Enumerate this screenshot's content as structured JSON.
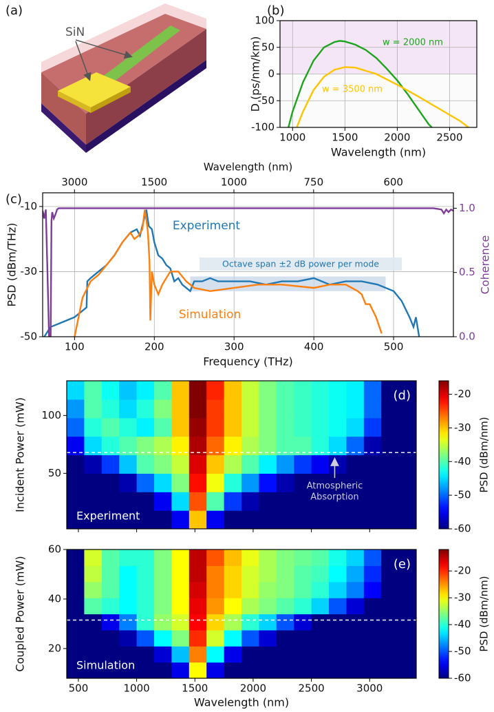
{
  "illustration": {
    "label": "(a)",
    "annotation": "SiN"
  },
  "chart_data": [
    {
      "type": "line",
      "panel_label": "(b)",
      "xlabel": "Wavelength (nm)",
      "ylabel": "D (ps/nm/km)",
      "xlim": [
        880,
        2760
      ],
      "xticks": [
        1000,
        1500,
        2000,
        2500
      ],
      "ylim": [
        -100,
        100
      ],
      "yticks": [
        -100,
        -50,
        0,
        50,
        100
      ],
      "grid": true,
      "band": [
        0,
        100
      ],
      "band_color": "#f4e6f6",
      "series": [
        {
          "name": "w = 2000 nm",
          "color": "#1ca51c",
          "x": [
            960,
            1000,
            1100,
            1200,
            1300,
            1400,
            1450,
            1500,
            1600,
            1700,
            1800,
            1900,
            2000,
            2100,
            2200,
            2300,
            2330
          ],
          "values": [
            -100,
            -70,
            -15,
            25,
            50,
            60,
            62,
            61,
            55,
            45,
            30,
            10,
            -12,
            -38,
            -66,
            -94,
            -100
          ]
        },
        {
          "name": "w = 3500 nm",
          "color": "#ffc400",
          "x": [
            1040,
            1100,
            1200,
            1300,
            1400,
            1500,
            1600,
            1800,
            2000,
            2200,
            2400,
            2600,
            2680
          ],
          "values": [
            -100,
            -70,
            -30,
            -5,
            8,
            13,
            12,
            0,
            -20,
            -42,
            -65,
            -88,
            -100
          ]
        }
      ]
    },
    {
      "type": "line",
      "panel_label": "(c)",
      "xlabel": "Frequency (THz)",
      "ylabel": "PSD (dBm/THz)",
      "y2label": "Coherence",
      "x2label": "Wavelength (nm)",
      "xlim": [
        60,
        575
      ],
      "xticks": [
        100,
        200,
        300,
        400,
        500
      ],
      "x2ticks": [
        3000,
        1500,
        1000,
        750,
        600
      ],
      "ylim": [
        -50,
        -5.8
      ],
      "yticks": [
        -50,
        -30,
        -10
      ],
      "y2lim": [
        0,
        1.12
      ],
      "y2ticks": [
        {
          "value": 0,
          "label": "0.0"
        },
        0.5,
        {
          "value": 1,
          "label": "1.0"
        }
      ],
      "grid": true,
      "annotation": "Octave span ±2 dB power per mode",
      "annotation_box": {
        "x": [
          245,
          490
        ],
        "y": [
          -36,
          -31.5
        ]
      },
      "series": [
        {
          "name": "Experiment",
          "color": "#1f77b4",
          "x": [
            62,
            70,
            80,
            90,
            100,
            110,
            115,
            116,
            120,
            130,
            140,
            150,
            160,
            170,
            178,
            182,
            185,
            188,
            190,
            193,
            197,
            200,
            205,
            210,
            215,
            220,
            225,
            230,
            235,
            240,
            245,
            250,
            260,
            270,
            280,
            300,
            320,
            340,
            360,
            380,
            400,
            420,
            440,
            460,
            480,
            500,
            510,
            520,
            525,
            528,
            532
          ],
          "values": [
            -50,
            -47,
            -46,
            -45,
            -44,
            -42,
            -41,
            -33,
            -32,
            -30,
            -28,
            -25,
            -21,
            -18,
            -17,
            -19,
            -16,
            -13,
            -11,
            -16,
            -17,
            -21,
            -25,
            -26,
            -28,
            -29,
            -33,
            -32,
            -34,
            -35,
            -36,
            -33,
            -33,
            -32,
            -33,
            -33,
            -33,
            -34,
            -33,
            -33,
            -32,
            -34,
            -33,
            -33,
            -34,
            -36,
            -39,
            -44,
            -47,
            -44,
            -50
          ]
        },
        {
          "name": "Simulation",
          "color": "#ff7f0e",
          "x": [
            100,
            105,
            110,
            120,
            130,
            140,
            150,
            160,
            170,
            175,
            180,
            185,
            188,
            190,
            192,
            194,
            195,
            197,
            200,
            205,
            210,
            220,
            230,
            240,
            250,
            270,
            300,
            330,
            360,
            400,
            420,
            440,
            455,
            460,
            465,
            470,
            478,
            485
          ],
          "values": [
            -50,
            -44,
            -38,
            -33,
            -31,
            -28,
            -25,
            -21,
            -18,
            -20,
            -19,
            -17,
            -11,
            -14,
            -18,
            -27,
            -45,
            -30,
            -34,
            -37,
            -34,
            -30,
            -30,
            -33,
            -35,
            -36,
            -35,
            -34,
            -34,
            -35,
            -34,
            -34,
            -36,
            -37,
            -40,
            -40,
            -44,
            -49
          ]
        },
        {
          "axis": "y2",
          "color": "#7d3c98",
          "x": [
            60,
            62,
            64,
            66,
            68,
            69,
            70,
            71,
            72,
            74,
            76,
            78,
            80,
            85,
            100,
            200,
            300,
            400,
            500,
            550,
            560,
            563,
            566,
            569,
            572,
            575
          ],
          "values": [
            0.98,
            0.92,
            0.99,
            0.5,
            0,
            0,
            0,
            0.9,
            0.97,
            0.92,
            0.95,
            0.99,
            1,
            1,
            1,
            1,
            1,
            1,
            1,
            1,
            0.99,
            0.96,
            0.99,
            0.97,
            0.99,
            0.98
          ]
        }
      ]
    },
    {
      "type": "heatmap",
      "panel_label": "(d)",
      "ylabel": "Incident Power (mW)",
      "label": "Experiment",
      "annotation_lines": [
        "Atmospheric",
        "Absorption"
      ],
      "arrow": {
        "x": 2700,
        "y": [
          46,
          62
        ]
      },
      "xlim": [
        400,
        3400
      ],
      "xticks": [
        500,
        1000,
        1500,
        2000,
        2500,
        3000
      ],
      "ylim": [
        2,
        130
      ],
      "yticks": [
        50,
        100
      ],
      "dashed_y": 68,
      "colormap": "jet",
      "clim": [
        -60,
        -16
      ],
      "cticks": [
        -60,
        -50,
        -40,
        -30,
        -20
      ],
      "clabel": "PSD (dBm/nm)",
      "x_bins": [
        400,
        550,
        700,
        850,
        1000,
        1150,
        1300,
        1450,
        1600,
        1750,
        1900,
        2050,
        2200,
        2350,
        2500,
        2650,
        2800,
        2950,
        3100,
        3250,
        3400
      ],
      "y_bins": [
        2,
        18,
        34,
        50,
        66,
        82,
        98,
        114,
        130
      ],
      "z": [
        [
          -60,
          -60,
          -60,
          -60,
          -60,
          -60,
          -55,
          -30,
          -55,
          -60,
          -60,
          -60,
          -60,
          -60,
          -60,
          -60,
          -60,
          -60,
          -60,
          -60
        ],
        [
          -60,
          -60,
          -60,
          -60,
          -60,
          -55,
          -45,
          -25,
          -40,
          -52,
          -58,
          -60,
          -60,
          -60,
          -60,
          -60,
          -60,
          -60,
          -60,
          -60
        ],
        [
          -60,
          -60,
          -60,
          -58,
          -50,
          -45,
          -38,
          -22,
          -33,
          -42,
          -48,
          -54,
          -58,
          -60,
          -60,
          -60,
          -60,
          -60,
          -60,
          -60
        ],
        [
          -60,
          -58,
          -52,
          -46,
          -40,
          -38,
          -35,
          -20,
          -30,
          -36,
          -40,
          -44,
          -48,
          -52,
          -55,
          -58,
          -60,
          -60,
          -60,
          -60
        ],
        [
          -55,
          -45,
          -42,
          -40,
          -38,
          -36,
          -32,
          -18,
          -26,
          -32,
          -36,
          -38,
          -40,
          -40,
          -42,
          -45,
          -50,
          -58,
          -60,
          -60
        ],
        [
          -50,
          -42,
          -40,
          -42,
          -44,
          -40,
          -30,
          -17,
          -24,
          -30,
          -35,
          -38,
          -40,
          -41,
          -42,
          -43,
          -45,
          -52,
          -60,
          -60
        ],
        [
          -48,
          -40,
          -42,
          -45,
          -42,
          -38,
          -30,
          -16,
          -24,
          -30,
          -35,
          -38,
          -40,
          -41,
          -42,
          -43,
          -44,
          -50,
          -60,
          -60
        ],
        [
          -45,
          -40,
          -43,
          -46,
          -44,
          -40,
          -30,
          -16,
          -23,
          -30,
          -35,
          -38,
          -40,
          -41,
          -42,
          -43,
          -44,
          -50,
          -60,
          -60
        ]
      ]
    },
    {
      "type": "heatmap",
      "panel_label": "(e)",
      "ylabel": "Coupled Power (mW)",
      "xlabel": "Wavelength (nm)",
      "label": "Simulation",
      "xlim": [
        400,
        3400
      ],
      "xticks": [
        500,
        1000,
        1500,
        2000,
        2500,
        3000
      ],
      "ylim": [
        8,
        60
      ],
      "yticks": [
        20,
        40,
        60
      ],
      "dashed_y": 31.5,
      "colormap": "jet",
      "clim": [
        -60,
        -12
      ],
      "cticks": [
        -60,
        -50,
        -40,
        -30,
        -20
      ],
      "clabel": "PSD (dBm/nm)",
      "x_bins": [
        400,
        550,
        700,
        850,
        1000,
        1150,
        1300,
        1450,
        1600,
        1750,
        1900,
        2050,
        2200,
        2350,
        2500,
        2650,
        2800,
        2950,
        3100,
        3250,
        3400
      ],
      "y_bins": [
        8,
        14.5,
        21,
        27.5,
        34,
        40.5,
        47,
        53.5,
        60
      ],
      "z": [
        [
          -60,
          -60,
          -60,
          -60,
          -60,
          -60,
          -55,
          -30,
          -55,
          -60,
          -60,
          -60,
          -60,
          -60,
          -60,
          -60,
          -60,
          -60,
          -60,
          -60
        ],
        [
          -60,
          -60,
          -60,
          -60,
          -60,
          -56,
          -45,
          -24,
          -42,
          -55,
          -60,
          -60,
          -60,
          -60,
          -60,
          -60,
          -60,
          -60,
          -60,
          -60
        ],
        [
          -60,
          -60,
          -60,
          -58,
          -50,
          -42,
          -36,
          -20,
          -32,
          -42,
          -50,
          -56,
          -60,
          -60,
          -60,
          -60,
          -60,
          -60,
          -60,
          -60
        ],
        [
          -60,
          -60,
          -55,
          -48,
          -40,
          -35,
          -32,
          -18,
          -28,
          -34,
          -40,
          -44,
          -50,
          -56,
          -60,
          -60,
          -60,
          -60,
          -60,
          -60
        ],
        [
          -60,
          -38,
          -40,
          -42,
          -40,
          -36,
          -30,
          -17,
          -25,
          -30,
          -34,
          -36,
          -38,
          -40,
          -44,
          -50,
          -56,
          -60,
          -60,
          -60
        ],
        [
          -60,
          -35,
          -38,
          -42,
          -40,
          -36,
          -30,
          -16,
          -24,
          -28,
          -32,
          -35,
          -36,
          -38,
          -40,
          -44,
          -48,
          -54,
          -60,
          -60
        ],
        [
          -60,
          -33,
          -38,
          -42,
          -40,
          -36,
          -30,
          -15,
          -24,
          -28,
          -32,
          -34,
          -36,
          -38,
          -39,
          -42,
          -46,
          -52,
          -60,
          -60
        ],
        [
          -60,
          -32,
          -38,
          -40,
          -40,
          -36,
          -30,
          -15,
          -22,
          -27,
          -31,
          -34,
          -36,
          -37,
          -38,
          -41,
          -44,
          -50,
          -60,
          -60
        ]
      ]
    }
  ]
}
